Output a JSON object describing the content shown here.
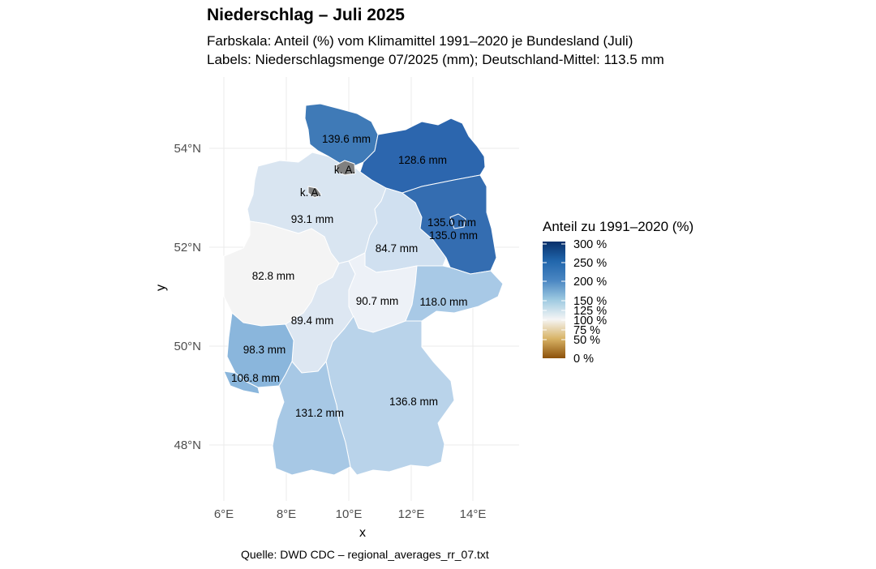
{
  "title": "Niederschlag – Juli 2025",
  "subtitle_line1": "Farbskala: Anteil (%) vom Klimamittel 1991–2020 je Bundesland (Juli)",
  "subtitle_line2": "Labels: Niederschlagsmenge 07/2025 (mm); Deutschland-Mittel: 113.5 mm",
  "caption": "Quelle: DWD CDC – regional_averages_rr_07.txt",
  "axes": {
    "xlabel": "x",
    "ylabel": "y",
    "x_ticks": [
      "6°E",
      "8°E",
      "10°E",
      "12°E",
      "14°E"
    ],
    "y_ticks": [
      "54°N",
      "52°N",
      "50°N",
      "48°N"
    ]
  },
  "legend": {
    "title": "Anteil zu 1991–2020 (%)",
    "labels": [
      "300 %",
      "250 %",
      "200 %",
      "150 %",
      "125 %",
      "100 %",
      "75 %",
      "50 %",
      "0 %"
    ]
  },
  "colors": {
    "no_data": "#808080",
    "border": "#ffffff",
    "grid": "#ebebeb",
    "scale_0": "#8c510a",
    "scale_100": "#f5f5f5",
    "scale_300": "#08306b"
  },
  "regions": [
    {
      "name": "Schleswig-Holstein",
      "label": "139.6 mm",
      "fill": "#3f7ab7"
    },
    {
      "name": "Mecklenburg-Vorpommern",
      "label": "128.6 mm",
      "fill": "#2c66ae"
    },
    {
      "name": "Hamburg",
      "label": "k. A.",
      "fill": "#808080"
    },
    {
      "name": "Bremen",
      "label": "k. A.",
      "fill": "#808080"
    },
    {
      "name": "Niedersachsen",
      "label": "93.1 mm",
      "fill": "#d9e5f1"
    },
    {
      "name": "Brandenburg",
      "label": "135.0 mm",
      "fill": "#346db1"
    },
    {
      "name": "Berlin",
      "label": "135.0 mm",
      "fill": "#346db1"
    },
    {
      "name": "Sachsen-Anhalt",
      "label": "84.7 mm",
      "fill": "#d0e0f0"
    },
    {
      "name": "Nordrhein-Westfalen",
      "label": "82.8 mm",
      "fill": "#f4f4f4"
    },
    {
      "name": "Sachsen",
      "label": "118.0 mm",
      "fill": "#a8c9e6"
    },
    {
      "name": "Thüringen",
      "label": "90.7 mm",
      "fill": "#edf1f7"
    },
    {
      "name": "Hessen",
      "label": "89.4 mm",
      "fill": "#dde7f2"
    },
    {
      "name": "Rheinland-Pfalz",
      "label": "98.3 mm",
      "fill": "#8ab6dc"
    },
    {
      "name": "Saarland",
      "label": "106.8 mm",
      "fill": "#8ab6dc"
    },
    {
      "name": "Baden-Württemberg",
      "label": "131.2 mm",
      "fill": "#a7c8e5"
    },
    {
      "name": "Bayern",
      "label": "136.8 mm",
      "fill": "#b9d3ea"
    }
  ]
}
